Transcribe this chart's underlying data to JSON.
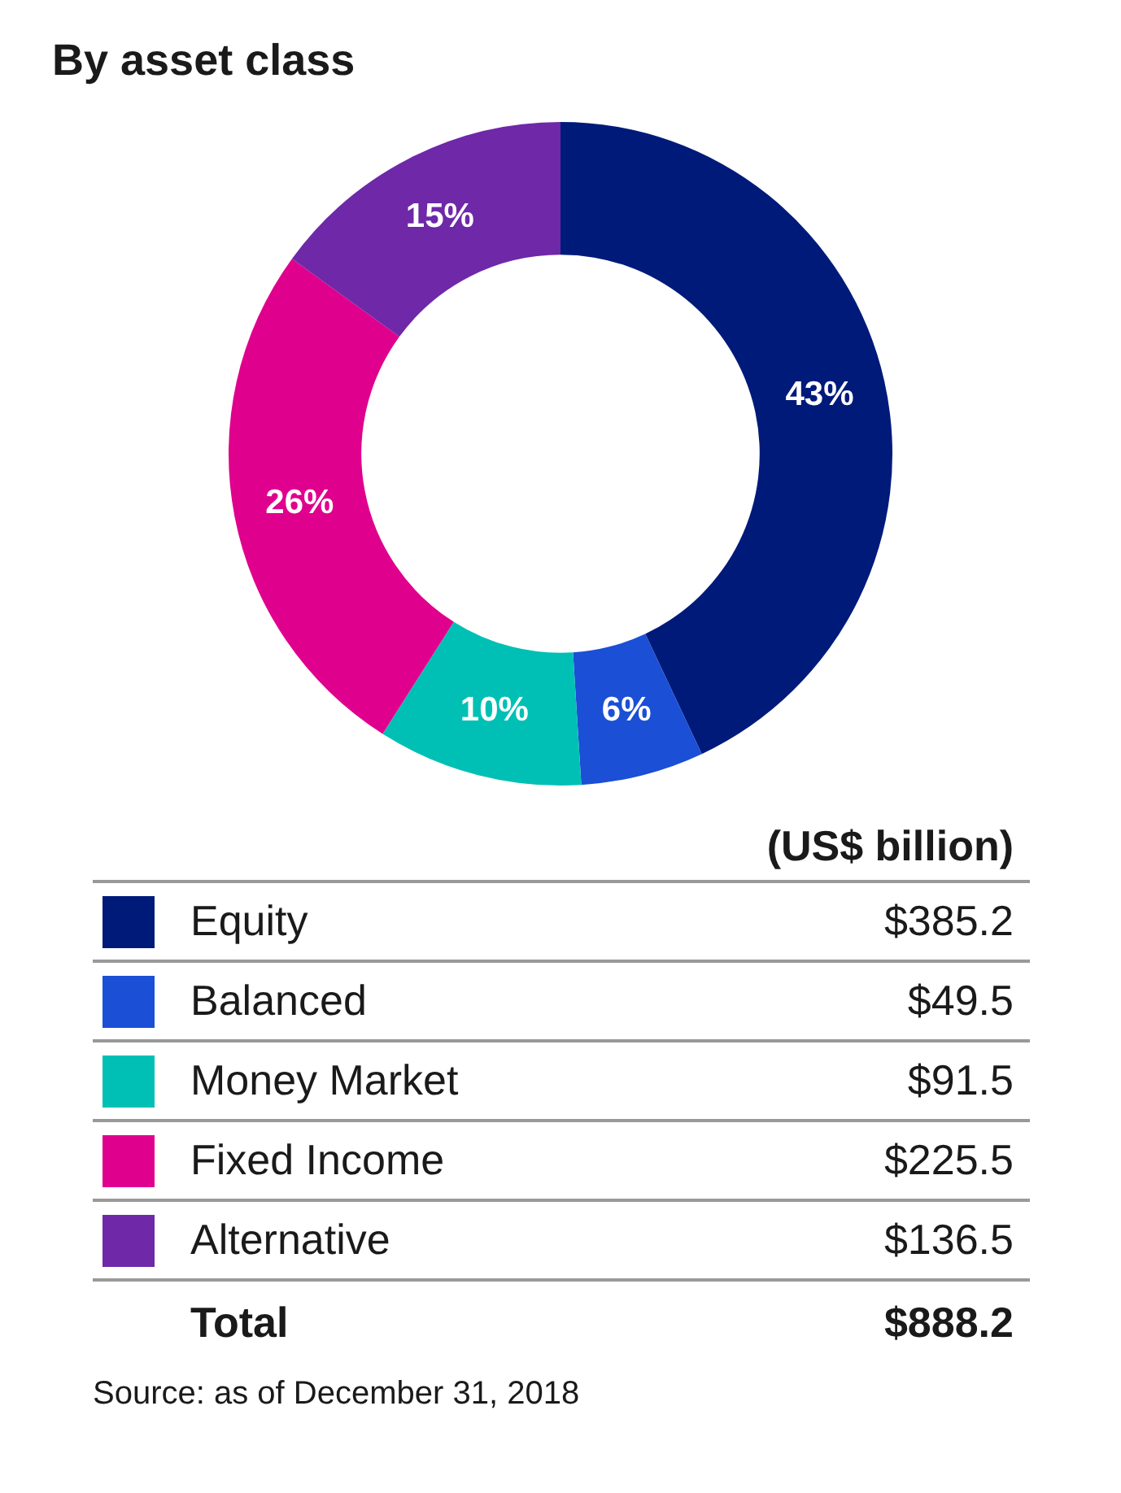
{
  "chart_data": {
    "type": "donut",
    "title": "By asset class",
    "categories": [
      "Equity",
      "Balanced",
      "Money Market",
      "Fixed Income",
      "Alternative"
    ],
    "values": [
      43,
      6,
      10,
      26,
      15
    ],
    "colors": [
      "#001a7a",
      "#1a4fd6",
      "#00c0b5",
      "#e0008e",
      "#6e28a8"
    ],
    "value_labels": [
      "43%",
      "6%",
      "10%",
      "26%",
      "15%"
    ],
    "legend": "bottom",
    "annotations": [
      "(US$ billion)",
      "$385.2",
      "$49.5",
      "$91.5",
      "$225.5",
      "$136.5",
      "Total",
      "$888.2",
      "Source: as of December 31, 2018"
    ]
  }
}
